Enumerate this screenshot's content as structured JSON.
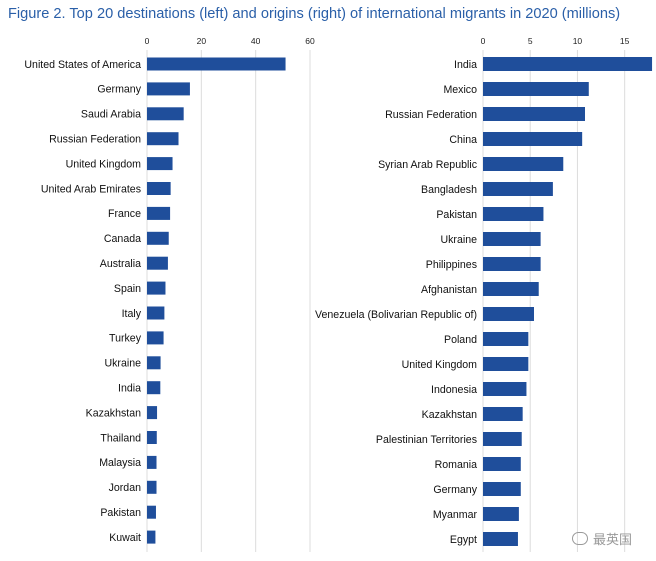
{
  "title": "Figure 2. Top 20 destinations (left) and origins (right) of international migrants in 2020 (millions)",
  "watermark": "最英国",
  "colors": {
    "bar": "#1f4e9b",
    "title": "#2a5fa8",
    "grid": "#dcdcdc"
  },
  "chart_data": [
    {
      "type": "bar",
      "orientation": "horizontal",
      "title": "",
      "xlabel": "",
      "ylabel": "",
      "xlim": [
        0,
        60
      ],
      "xticks": [
        0,
        20,
        40,
        60
      ],
      "grid": true,
      "categories": [
        "United States of America",
        "Germany",
        "Saudi Arabia",
        "Russian Federation",
        "United Kingdom",
        "United Arab Emirates",
        "France",
        "Canada",
        "Australia",
        "Spain",
        "Italy",
        "Turkey",
        "Ukraine",
        "India",
        "Kazakhstan",
        "Thailand",
        "Malaysia",
        "Jordan",
        "Pakistan",
        "Kuwait"
      ],
      "values": [
        51,
        15.8,
        13.5,
        11.6,
        9.4,
        8.7,
        8.5,
        8.0,
        7.7,
        6.8,
        6.4,
        6.1,
        5.0,
        4.9,
        3.7,
        3.6,
        3.5,
        3.5,
        3.3,
        3.1
      ]
    },
    {
      "type": "bar",
      "orientation": "horizontal",
      "title": "",
      "xlabel": "",
      "ylabel": "",
      "xlim": [
        0,
        18
      ],
      "xticks": [
        0,
        5,
        10,
        15
      ],
      "grid": true,
      "categories": [
        "India",
        "Mexico",
        "Russian Federation",
        "China",
        "Syrian Arab Republic",
        "Bangladesh",
        "Pakistan",
        "Ukraine",
        "Philippines",
        "Afghanistan",
        "Venezuela (Bolivarian Republic of)",
        "Poland",
        "United Kingdom",
        "Indonesia",
        "Kazakhstan",
        "Palestinian Territories",
        "Romania",
        "Germany",
        "Myanmar",
        "Egypt"
      ],
      "values": [
        17.9,
        11.2,
        10.8,
        10.5,
        8.5,
        7.4,
        6.4,
        6.1,
        6.1,
        5.9,
        5.4,
        4.8,
        4.8,
        4.6,
        4.2,
        4.1,
        4.0,
        4.0,
        3.8,
        3.7
      ]
    }
  ]
}
